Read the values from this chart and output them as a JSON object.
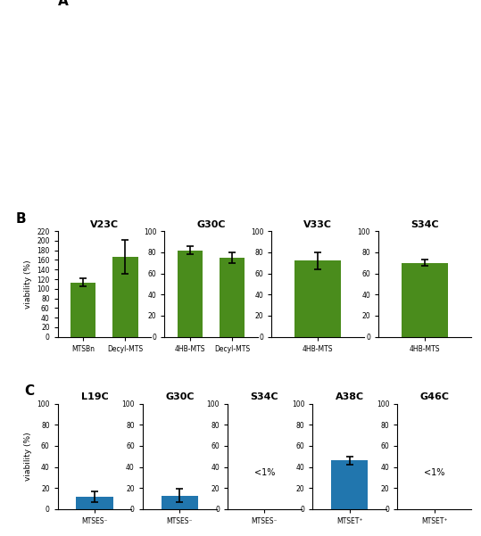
{
  "panel_B": {
    "subplots": [
      {
        "title": "V23C",
        "bars": [
          {
            "label": "MTSBn",
            "value": 113,
            "error": 8
          },
          {
            "label": "Decyl-MTS",
            "value": 167,
            "error": 35
          }
        ],
        "ylim": [
          0,
          220
        ],
        "yticks": [
          0,
          20,
          40,
          60,
          80,
          100,
          120,
          140,
          160,
          180,
          200,
          220
        ],
        "ytick_labels": [
          "0",
          "20",
          "40",
          "60",
          "80",
          "100",
          "120",
          "140",
          "160",
          "180",
          "200",
          "220"
        ]
      },
      {
        "title": "G30C",
        "bars": [
          {
            "label": "4HB-MTS",
            "value": 82,
            "error": 4
          },
          {
            "label": "Decyl-MTS",
            "value": 75,
            "error": 5
          }
        ],
        "ylim": [
          0,
          100
        ],
        "yticks": [
          0,
          20,
          40,
          60,
          80,
          100
        ],
        "ytick_labels": [
          "0",
          "20",
          "40",
          "60",
          "80",
          "100"
        ]
      },
      {
        "title": "V33C",
        "bars": [
          {
            "label": "4HB-MTS",
            "value": 72,
            "error": 8
          }
        ],
        "ylim": [
          0,
          100
        ],
        "yticks": [
          0,
          20,
          40,
          60,
          80,
          100
        ],
        "ytick_labels": [
          "0",
          "20",
          "40",
          "60",
          "80",
          "100"
        ]
      },
      {
        "title": "S34C",
        "bars": [
          {
            "label": "4HB-MTS",
            "value": 70,
            "error": 3
          }
        ],
        "ylim": [
          0,
          100
        ],
        "yticks": [
          0,
          20,
          40,
          60,
          80,
          100
        ],
        "ytick_labels": [
          "0",
          "20",
          "40",
          "60",
          "80",
          "100"
        ]
      }
    ],
    "bar_color": "#4a8c1c",
    "ylabel": "viability (%)"
  },
  "panel_C": {
    "subplots": [
      {
        "title": "L19C",
        "bars": [
          {
            "label": "MTSES⁻",
            "value": 12,
            "error": 5
          }
        ],
        "ylim": [
          0,
          100
        ],
        "yticks": [
          0,
          20,
          40,
          60,
          80,
          100
        ],
        "text": null
      },
      {
        "title": "G30C",
        "bars": [
          {
            "label": "MTSES⁻",
            "value": 13,
            "error": 6
          }
        ],
        "ylim": [
          0,
          100
        ],
        "yticks": [
          0,
          20,
          40,
          60,
          80,
          100
        ],
        "text": null
      },
      {
        "title": "S34C",
        "bars": [],
        "ylim": [
          0,
          100
        ],
        "yticks": [
          0,
          20,
          40,
          60,
          80,
          100
        ],
        "text": "<1%",
        "xlabel": "MTSES⁻"
      },
      {
        "title": "A38C",
        "bars": [
          {
            "label": "MTSET⁺",
            "value": 46,
            "error": 4
          }
        ],
        "ylim": [
          0,
          100
        ],
        "yticks": [
          0,
          20,
          40,
          60,
          80,
          100
        ],
        "text": null
      },
      {
        "title": "G46C",
        "bars": [],
        "ylim": [
          0,
          100
        ],
        "yticks": [
          0,
          20,
          40,
          60,
          80,
          100
        ],
        "text": "<1%",
        "xlabel": "MTSET⁺"
      }
    ],
    "bar_color": "#2176ae",
    "ylabel": "viability (%)"
  }
}
